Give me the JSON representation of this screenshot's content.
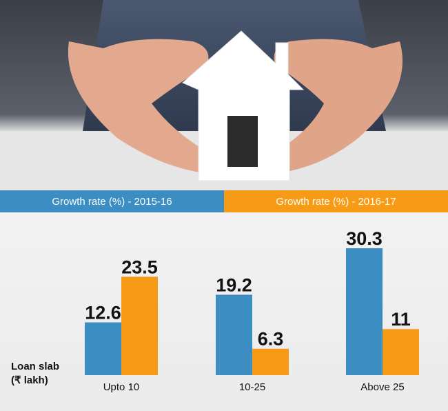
{
  "colors": {
    "series_2015_16": "#3c8dc2",
    "series_2016_17": "#f79b16"
  },
  "legend": {
    "s1_label": "Growth rate (%) - 2015-16",
    "s2_label": "Growth rate (%) - 2016-17"
  },
  "axis": {
    "ylabel_line1": "Loan slab",
    "ylabel_line2": "(₹ lakh)"
  },
  "chart_data": {
    "type": "bar",
    "categories": [
      "Upto 10",
      "10-25",
      "Above 25"
    ],
    "series": [
      {
        "name": "Growth rate (%) - 2015-16",
        "values": [
          12.6,
          19.2,
          30.3
        ],
        "labels": [
          "12.6",
          "19.2",
          "30.3"
        ]
      },
      {
        "name": "Growth rate (%) - 2016-17",
        "values": [
          23.5,
          6.3,
          11
        ],
        "labels": [
          "23.5",
          "6.3",
          "11"
        ]
      }
    ],
    "title": "",
    "xlabel": "Loan slab (₹ lakh)",
    "ylabel": "",
    "ylim": [
      0,
      30.3
    ],
    "grid": false,
    "legend_position": "top"
  }
}
